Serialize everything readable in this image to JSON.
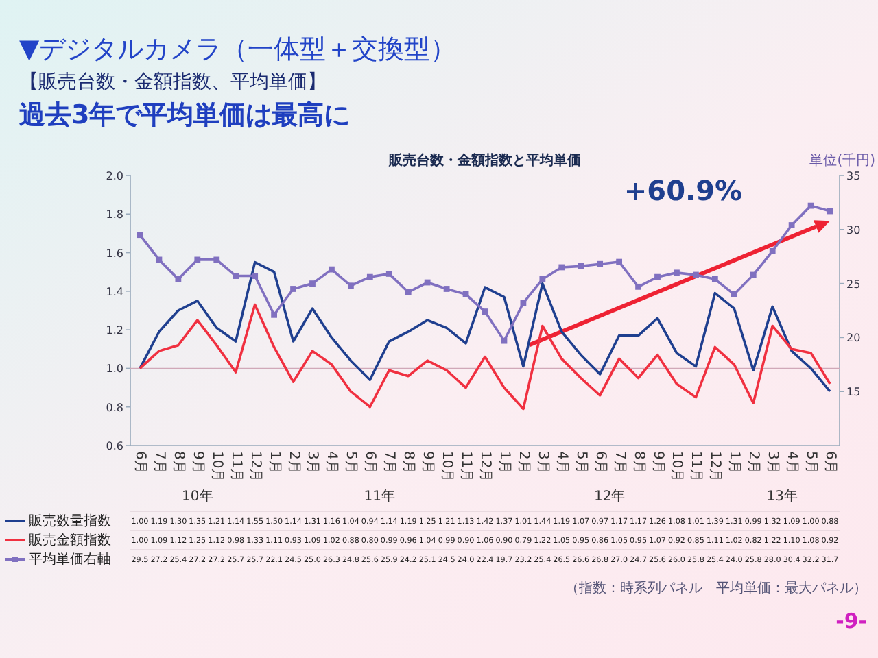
{
  "chart_data": {
    "type": "line",
    "title": "▼デジタルカメラ（一体型＋交換型）",
    "subtitle": "【販売台数・金額指数、平均単価】",
    "y2label": "単位(千円)",
    "annotations": [
      "過去3年で平均単価は最高に",
      "販売台数・金額指数と平均単価",
      "+60.9%",
      "（指数：時系列パネル　平均単価：最大パネル）",
      "-9-",
      "10年",
      "11年",
      "12年",
      "13年"
    ],
    "categories": [
      "6月",
      "7月",
      "8月",
      "9月",
      "10月",
      "11月",
      "12月",
      "1月",
      "2月",
      "3月",
      "4月",
      "5月",
      "6月",
      "7月",
      "8月",
      "9月",
      "10月",
      "11月",
      "12月",
      "1月",
      "2月",
      "3月",
      "4月",
      "5月",
      "6月",
      "7月",
      "8月",
      "9月",
      "10月",
      "11月",
      "12月",
      "1月",
      "2月",
      "3月",
      "4月",
      "5月",
      "6月"
    ],
    "series": [
      {
        "name": "販売数量指数",
        "color": "#1f3f8f",
        "values": [
          1.0,
          1.19,
          1.3,
          1.35,
          1.21,
          1.14,
          1.55,
          1.5,
          1.14,
          1.31,
          1.16,
          1.04,
          0.94,
          1.14,
          1.19,
          1.25,
          1.21,
          1.13,
          1.42,
          1.37,
          1.01,
          1.44,
          1.19,
          1.07,
          0.97,
          1.17,
          1.17,
          1.26,
          1.08,
          1.01,
          1.39,
          1.31,
          0.99,
          1.32,
          1.09,
          1.0,
          0.88
        ],
        "value_labels": [
          "1.00",
          "1.19",
          "1.30",
          "1.35",
          "1.21",
          "1.14",
          "1.55",
          "1.50",
          "1.14",
          "1.31",
          "1.16",
          "1.04",
          "0.94",
          "1.14",
          "1.19",
          "1.25",
          "1.21",
          "1.13",
          "1.42",
          "1.37",
          "1.01",
          "1.44",
          "1.19",
          "1.07",
          "0.97",
          "1.17",
          "1.17",
          "1.26",
          "1.08",
          "1.01",
          "1.39",
          "1.31",
          "0.99",
          "1.32",
          "1.09",
          "1.00",
          "0.88"
        ]
      },
      {
        "name": "販売金額指数",
        "color": "#f03040",
        "values": [
          1.0,
          1.09,
          1.12,
          1.25,
          1.12,
          0.98,
          1.33,
          1.11,
          0.93,
          1.09,
          1.02,
          0.88,
          0.8,
          0.99,
          0.96,
          1.04,
          0.99,
          0.9,
          1.06,
          0.9,
          0.79,
          1.22,
          1.05,
          0.95,
          0.86,
          1.05,
          0.95,
          1.07,
          0.92,
          0.85,
          1.11,
          1.02,
          0.82,
          1.22,
          1.1,
          1.08,
          0.92
        ],
        "value_labels": [
          "1.00",
          "1.09",
          "1.12",
          "1.25",
          "1.12",
          "0.98",
          "1.33",
          "1.11",
          "0.93",
          "1.09",
          "1.02",
          "0.88",
          "0.80",
          "0.99",
          "0.96",
          "1.04",
          "0.99",
          "0.90",
          "1.06",
          "0.90",
          "0.79",
          "1.22",
          "1.05",
          "0.95",
          "0.86",
          "1.05",
          "0.95",
          "1.07",
          "0.92",
          "0.85",
          "1.11",
          "1.02",
          "0.82",
          "1.22",
          "1.10",
          "1.08",
          "0.92"
        ]
      },
      {
        "name": "平均単価右軸",
        "color": "#8070c0",
        "axis": "y2",
        "marker": "square",
        "values": [
          29.5,
          27.2,
          25.4,
          27.2,
          27.2,
          25.7,
          25.7,
          22.1,
          24.5,
          25.0,
          26.3,
          24.8,
          25.6,
          25.9,
          24.2,
          25.1,
          24.5,
          24.0,
          22.4,
          19.7,
          23.2,
          25.4,
          26.5,
          26.6,
          26.8,
          27.0,
          24.7,
          25.6,
          26.0,
          25.8,
          25.4,
          24.0,
          25.8,
          28.0,
          30.4,
          32.2,
          31.7
        ],
        "value_labels": [
          "29.5",
          "27.2",
          "25.4",
          "27.2",
          "27.2",
          "25.7",
          "25.7",
          "22.1",
          "24.5",
          "25.0",
          "26.3",
          "24.8",
          "25.6",
          "25.9",
          "24.2",
          "25.1",
          "24.5",
          "24.0",
          "22.4",
          "19.7",
          "23.2",
          "25.4",
          "26.5",
          "26.6",
          "26.8",
          "27.0",
          "24.7",
          "25.6",
          "26.0",
          "25.8",
          "25.4",
          "24.0",
          "25.8",
          "28.0",
          "30.4",
          "32.2",
          "31.7"
        ]
      }
    ],
    "ylim": [
      0.6,
      2.0
    ],
    "yticks": [
      {
        "value": 0.6,
        "label": "0.6"
      },
      {
        "value": 0.8,
        "label": "0.8"
      },
      {
        "value": 1.0,
        "label": "1.0"
      },
      {
        "value": 1.2,
        "label": "1.2"
      },
      {
        "value": 1.4,
        "label": "1.4"
      },
      {
        "value": 1.6,
        "label": "1.6"
      },
      {
        "value": 1.8,
        "label": "1.8"
      },
      {
        "value": 2.0,
        "label": "2.0"
      }
    ],
    "y2lim": [
      10,
      35
    ],
    "y2ticks": [
      15,
      20,
      25,
      30,
      35
    ],
    "ref_lines": [
      {
        "axis": "y",
        "value": 1.0,
        "color": "#d0a8b8"
      }
    ],
    "legend": "bottom",
    "grid": false
  }
}
